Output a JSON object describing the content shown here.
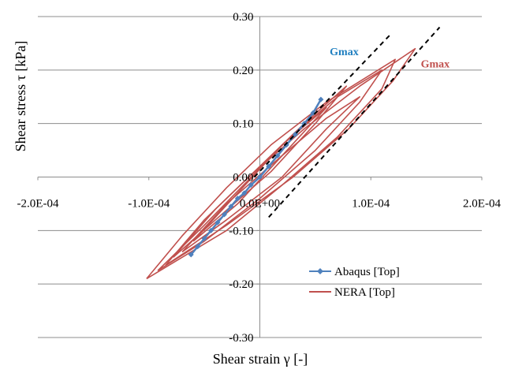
{
  "chart_data": {
    "type": "line",
    "title": "",
    "xlabel": "Shear strain γ [-]",
    "ylabel": "Shear stress τ [kPa]",
    "xlim": [
      -0.0002,
      0.0002
    ],
    "ylim": [
      -0.3,
      0.3
    ],
    "x_tick_labels": [
      {
        "value": -0.0002,
        "label": "-2.0E-04"
      },
      {
        "value": -0.0001,
        "label": "-1.0E-04"
      },
      {
        "value": 0,
        "label": "0.0E+00"
      },
      {
        "value": 0.0001,
        "label": "1.0E-04"
      },
      {
        "value": 0.0002,
        "label": "2.0E-04"
      }
    ],
    "y_tick_labels": [
      {
        "value": 0.3,
        "label": "0.30"
      },
      {
        "value": 0.2,
        "label": "0.20"
      },
      {
        "value": 0.1,
        "label": "0.10"
      },
      {
        "value": 0.0,
        "label": "0.00"
      },
      {
        "value": -0.1,
        "label": "-0.10"
      },
      {
        "value": -0.2,
        "label": "-0.20"
      },
      {
        "value": -0.3,
        "label": "-0.30"
      }
    ],
    "grid": {
      "horizontal": true,
      "vertical": false
    },
    "legend_position": "bottom-right",
    "series": [
      {
        "name": "Abaqus [Top]",
        "color": "#4f81bd",
        "marker": "diamond",
        "points": [
          [
            -6.2e-05,
            -0.145
          ],
          [
            -5.6e-05,
            -0.13
          ],
          [
            -5e-05,
            -0.115
          ],
          [
            -4.4e-05,
            -0.1
          ],
          [
            -3.8e-05,
            -0.085
          ],
          [
            -3.2e-05,
            -0.07
          ],
          [
            -2.6e-05,
            -0.055
          ],
          [
            -2e-05,
            -0.04
          ],
          [
            -1.4e-05,
            -0.03
          ],
          [
            -8e-06,
            -0.015
          ],
          [
            0.0,
            0.0
          ],
          [
            8e-06,
            0.02
          ],
          [
            1.6e-05,
            0.04
          ],
          [
            2.4e-05,
            0.06
          ],
          [
            3.2e-05,
            0.08
          ],
          [
            4e-05,
            0.1
          ],
          [
            4.8e-05,
            0.12
          ],
          [
            5.5e-05,
            0.145
          ]
        ]
      },
      {
        "name": "NERA [Top]",
        "color": "#c0504d",
        "loops": [
          {
            "upper": [
              [
                -0.000102,
                -0.19
              ],
              [
                -7e-05,
                -0.11
              ],
              [
                -3e-05,
                -0.02
              ],
              [
                1e-05,
                0.06
              ],
              [
                6e-05,
                0.14
              ],
              [
                0.000122,
                0.22
              ]
            ],
            "lower": [
              [
                0.000122,
                0.22
              ],
              [
                0.00011,
                0.165
              ],
              [
                7e-05,
                0.075
              ],
              [
                2e-05,
                -0.015
              ],
              [
                -3e-05,
                -0.1
              ],
              [
                -0.000102,
                -0.19
              ]
            ]
          },
          {
            "upper": [
              [
                -8.5e-05,
                -0.165
              ],
              [
                -5e-05,
                -0.08
              ],
              [
                -1e-05,
                0.0
              ],
              [
                4e-05,
                0.09
              ],
              [
                9e-05,
                0.17
              ],
              [
                0.00014,
                0.24
              ]
            ],
            "lower": [
              [
                0.00014,
                0.24
              ],
              [
                0.00012,
                0.18
              ],
              [
                8e-05,
                0.09
              ],
              [
                3e-05,
                0.0
              ],
              [
                -3e-05,
                -0.09
              ],
              [
                -8.5e-05,
                -0.165
              ]
            ]
          },
          {
            "upper": [
              [
                -7e-05,
                -0.14
              ],
              [
                -3e-05,
                -0.05
              ],
              [
                2e-05,
                0.04
              ],
              [
                6e-05,
                0.11
              ],
              [
                9e-05,
                0.15
              ]
            ],
            "lower": [
              [
                9e-05,
                0.15
              ],
              [
                6e-05,
                0.09
              ],
              [
                2e-05,
                0.0
              ],
              [
                -3e-05,
                -0.08
              ],
              [
                -7e-05,
                -0.14
              ]
            ]
          },
          {
            "upper": [
              [
                -7.8e-05,
                -0.15
              ],
              [
                -4e-05,
                -0.06
              ],
              [
                0.0,
                0.02
              ],
              [
                4e-05,
                0.1
              ],
              [
                7.8e-05,
                0.17
              ]
            ],
            "lower": [
              [
                7.8e-05,
                0.17
              ],
              [
                5e-05,
                0.1
              ],
              [
                1e-05,
                0.01
              ],
              [
                -4e-05,
                -0.08
              ],
              [
                -7.8e-05,
                -0.15
              ]
            ]
          },
          {
            "upper": [
              [
                -6e-05,
                -0.12
              ],
              [
                -2e-05,
                -0.03
              ],
              [
                2e-05,
                0.06
              ],
              [
                6e-05,
                0.13
              ]
            ],
            "lower": [
              [
                6e-05,
                0.13
              ],
              [
                2e-05,
                0.04
              ],
              [
                -2e-05,
                -0.05
              ],
              [
                -6e-05,
                -0.12
              ]
            ]
          },
          {
            "upper": [
              [
                -9.2e-05,
                -0.175
              ],
              [
                -5e-05,
                -0.09
              ],
              [
                -1e-05,
                -0.005
              ],
              [
                3e-05,
                0.08
              ],
              [
                7e-05,
                0.15
              ],
              [
                0.00011,
                0.2
              ]
            ],
            "lower": [
              [
                0.00011,
                0.2
              ],
              [
                9e-05,
                0.14
              ],
              [
                5e-05,
                0.05
              ],
              [
                0.0,
                -0.04
              ],
              [
                -5e-05,
                -0.12
              ],
              [
                -9.2e-05,
                -0.175
              ]
            ]
          }
        ]
      }
    ],
    "reference_lines": [
      {
        "style": "dashed",
        "color": "#000000",
        "points": [
          [
            -5e-06,
            0.0
          ],
          [
            0.000117,
            0.265
          ]
        ]
      },
      {
        "style": "dashed",
        "color": "#000000",
        "points": [
          [
            8e-06,
            -0.075
          ],
          [
            0.000162,
            0.28
          ]
        ]
      }
    ],
    "annotations": [
      {
        "text": "Gmax",
        "color": "#1f7fc0",
        "x": 6.3e-05,
        "y": 0.228
      },
      {
        "text": "Gmax",
        "color": "#c0504d",
        "x": 0.000145,
        "y": 0.205
      }
    ]
  }
}
